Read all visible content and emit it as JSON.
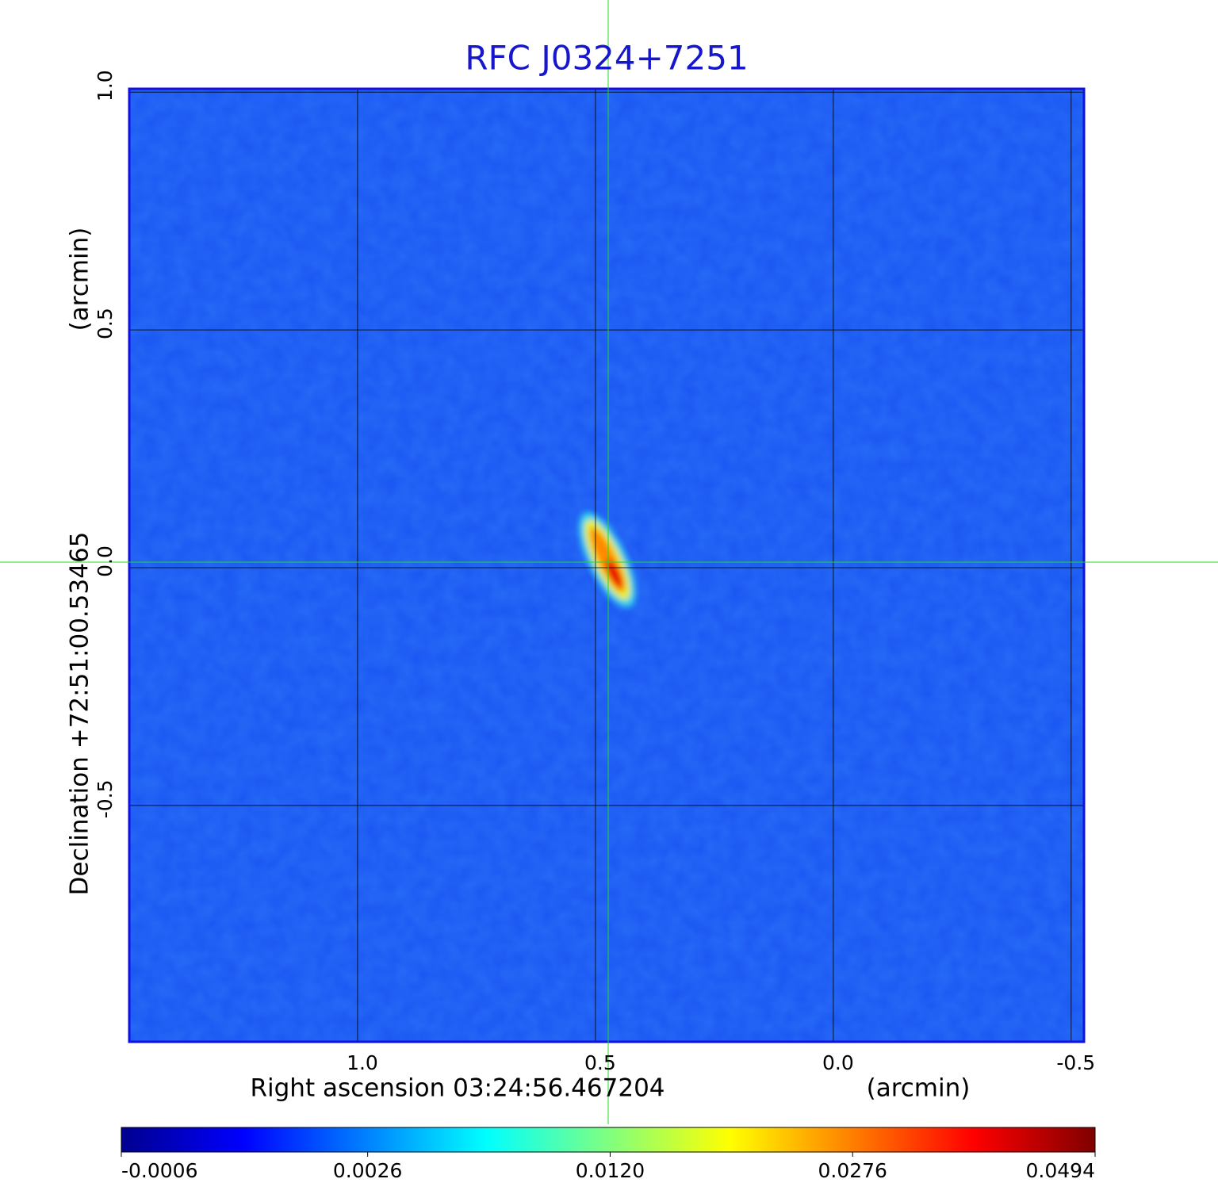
{
  "chart_data": {
    "type": "image",
    "title": "RFC J0324+7251",
    "xlabel": "Right ascension  03:24:56.467204",
    "xunit": "(arcmin)",
    "ylabel": "Declination  +72:51:00.53465",
    "yunit": "(arcmin)",
    "xlim": [
      1.48,
      -0.527
    ],
    "xticks": [
      {
        "value": 1,
        "label": "1.0"
      },
      0.5,
      {
        "value": 0,
        "label": "0.0"
      },
      -0.5
    ],
    "ylim": [
      -0.997,
      1.007
    ],
    "yticks": [
      {
        "value": 1,
        "label": "1.0"
      },
      0.5,
      {
        "value": 0,
        "label": "0.0"
      },
      -0.5
    ],
    "grid": true,
    "colormap": "jet",
    "colorbar": {
      "scale": "sqrt",
      "lim": [
        -0.0006,
        0.0494
      ],
      "ticks": [
        -0.0006,
        0.0026,
        {
          "value": 0.012,
          "label": "0.0120"
        },
        0.0276,
        0.0494
      ]
    }
  }
}
